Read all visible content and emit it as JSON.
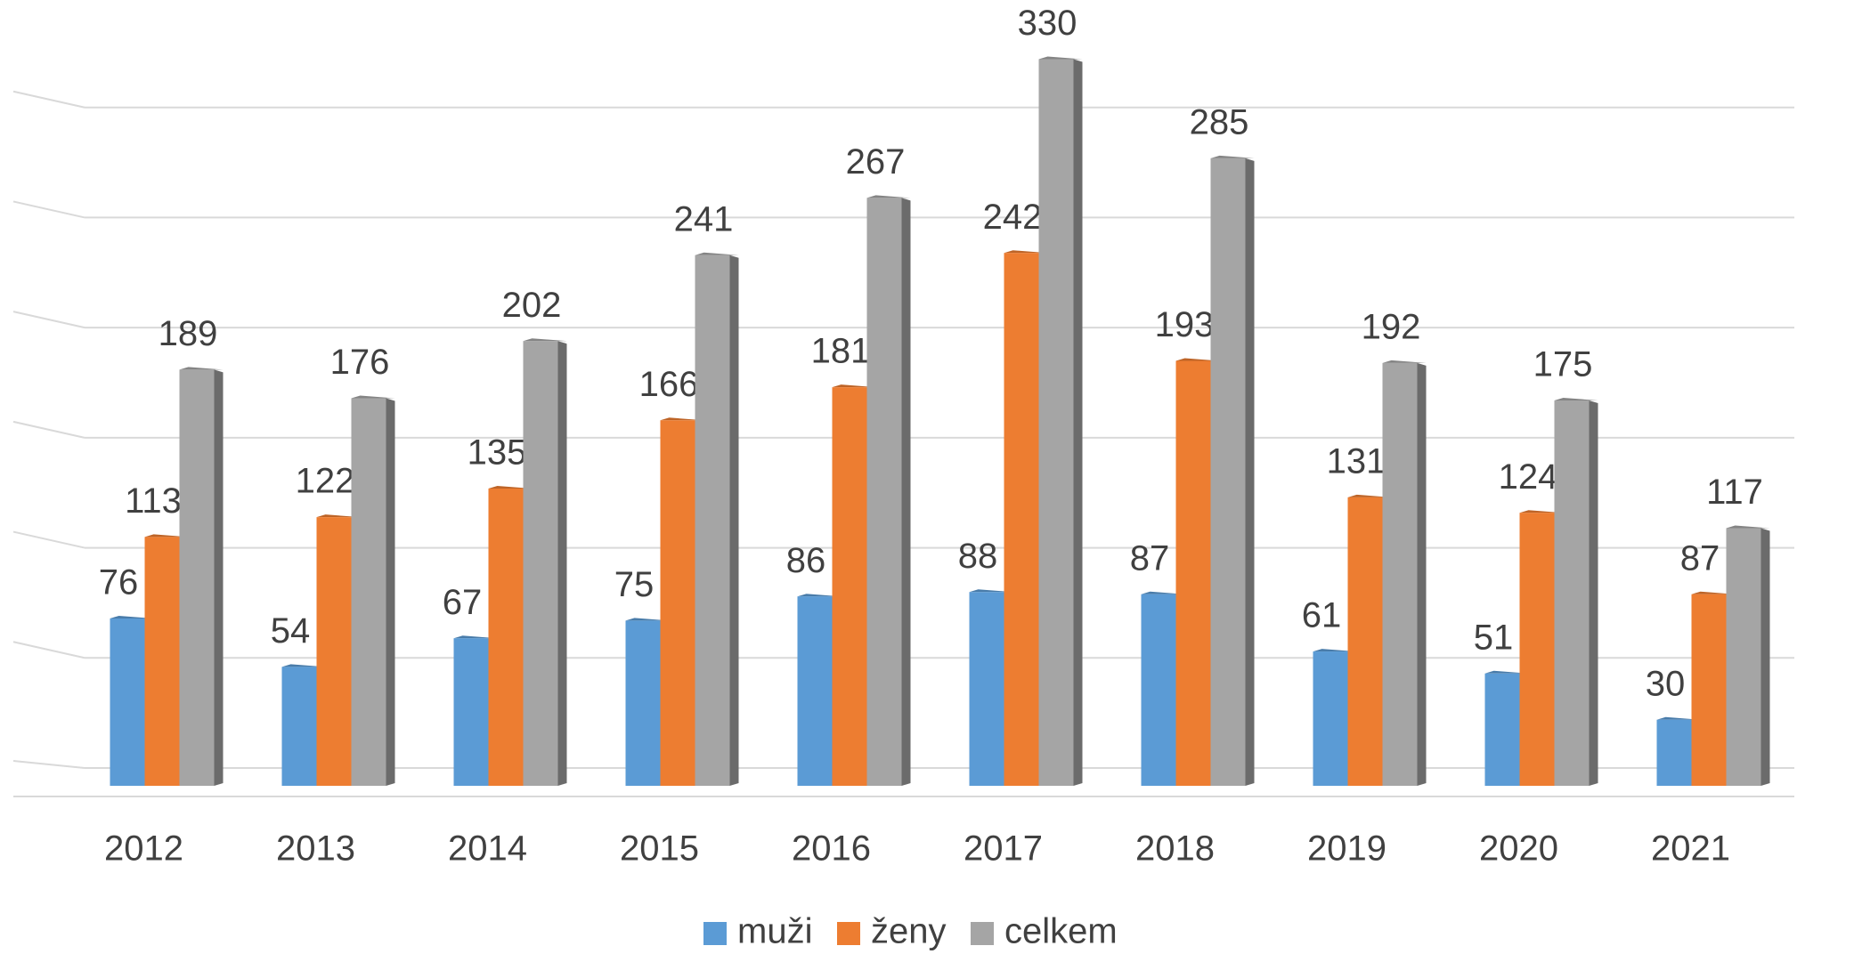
{
  "chart_data": {
    "type": "bar",
    "categories": [
      "2012",
      "2013",
      "2014",
      "2015",
      "2016",
      "2017",
      "2018",
      "2019",
      "2020",
      "2021"
    ],
    "series": [
      {
        "name": "muži",
        "color": "#5b9bd5",
        "values": [
          76,
          54,
          67,
          75,
          86,
          88,
          87,
          61,
          51,
          30
        ]
      },
      {
        "name": "ženy",
        "color": "#ed7d31",
        "values": [
          113,
          122,
          135,
          166,
          181,
          242,
          193,
          131,
          124,
          87
        ]
      },
      {
        "name": "celkem",
        "color": "#a5a5a5",
        "values": [
          189,
          176,
          202,
          241,
          267,
          330,
          285,
          192,
          175,
          117
        ]
      }
    ],
    "ylim": [
      0,
      350
    ],
    "yticks": [
      0,
      50,
      100,
      150,
      200,
      250,
      300,
      350
    ],
    "grid": true,
    "legend": "bottom"
  }
}
